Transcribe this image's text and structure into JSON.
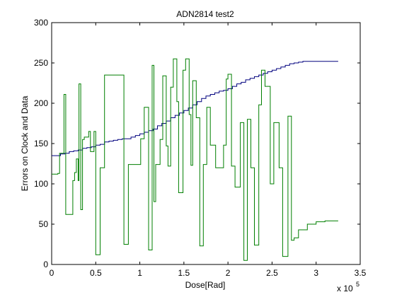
{
  "chart_data": {
    "type": "line",
    "title": "ADN2814 test2",
    "xlabel": "Dose[Rad]",
    "ylabel": "Errors on Clock and Data",
    "x_multiplier_label": "x 10",
    "x_multiplier_exponent": "5",
    "xlim": [
      0,
      3.5
    ],
    "ylim": [
      0,
      300
    ],
    "xticks": [
      0,
      0.5,
      1,
      1.5,
      2,
      2.5,
      3,
      3.5
    ],
    "xtick_labels": [
      "0",
      "0.5",
      "1",
      "1.5",
      "2",
      "2.5",
      "3",
      "3.5"
    ],
    "yticks": [
      0,
      50,
      100,
      150,
      200,
      250,
      300
    ],
    "ytick_labels": [
      "0",
      "50",
      "100",
      "150",
      "200",
      "250",
      "300"
    ],
    "grid": false,
    "series": [
      {
        "color": "#00007f",
        "step": true,
        "points": [
          [
            0,
            135
          ],
          [
            0.1,
            137
          ],
          [
            0.15,
            138
          ],
          [
            0.2,
            140
          ],
          [
            0.25,
            141
          ],
          [
            0.3,
            142
          ],
          [
            0.35,
            144
          ],
          [
            0.4,
            145
          ],
          [
            0.45,
            146
          ],
          [
            0.5,
            148
          ],
          [
            0.55,
            149
          ],
          [
            0.6,
            152
          ],
          [
            0.65,
            153
          ],
          [
            0.7,
            154
          ],
          [
            0.75,
            155
          ],
          [
            0.8,
            156
          ],
          [
            0.9,
            158
          ],
          [
            0.95,
            160
          ],
          [
            1.0,
            162
          ],
          [
            1.05,
            164
          ],
          [
            1.1,
            166
          ],
          [
            1.15,
            168
          ],
          [
            1.2,
            172
          ],
          [
            1.25,
            175
          ],
          [
            1.3,
            178
          ],
          [
            1.35,
            182
          ],
          [
            1.4,
            185
          ],
          [
            1.45,
            188
          ],
          [
            1.5,
            191
          ],
          [
            1.55,
            194
          ],
          [
            1.6,
            198
          ],
          [
            1.65,
            202
          ],
          [
            1.7,
            206
          ],
          [
            1.75,
            209
          ],
          [
            1.8,
            211
          ],
          [
            1.85,
            213
          ],
          [
            1.9,
            215
          ],
          [
            1.95,
            216
          ],
          [
            2.0,
            218
          ],
          [
            2.05,
            221
          ],
          [
            2.1,
            224
          ],
          [
            2.15,
            226
          ],
          [
            2.2,
            229
          ],
          [
            2.25,
            231
          ],
          [
            2.3,
            233
          ],
          [
            2.35,
            235
          ],
          [
            2.4,
            237
          ],
          [
            2.45,
            239
          ],
          [
            2.5,
            241
          ],
          [
            2.55,
            243
          ],
          [
            2.6,
            245
          ],
          [
            2.65,
            247
          ],
          [
            2.7,
            249
          ],
          [
            2.75,
            250
          ],
          [
            2.8,
            251
          ],
          [
            2.85,
            252
          ],
          [
            3.25,
            252
          ]
        ]
      },
      {
        "color": "#007f00",
        "step": true,
        "points": [
          [
            0,
            112
          ],
          [
            0.07,
            113
          ],
          [
            0.09,
            138
          ],
          [
            0.14,
            211
          ],
          [
            0.16,
            62
          ],
          [
            0.24,
            104
          ],
          [
            0.26,
            114
          ],
          [
            0.28,
            131
          ],
          [
            0.3,
            104
          ],
          [
            0.31,
            224
          ],
          [
            0.33,
            68
          ],
          [
            0.35,
            155
          ],
          [
            0.37,
            158
          ],
          [
            0.42,
            165
          ],
          [
            0.44,
            140
          ],
          [
            0.48,
            165
          ],
          [
            0.5,
            12
          ],
          [
            0.55,
            120
          ],
          [
            0.6,
            235
          ],
          [
            0.82,
            25
          ],
          [
            0.87,
            124
          ],
          [
            1.0,
            124
          ],
          [
            1.01,
            156
          ],
          [
            1.05,
            195
          ],
          [
            1.1,
            18
          ],
          [
            1.14,
            247
          ],
          [
            1.16,
            78
          ],
          [
            1.18,
            124
          ],
          [
            1.23,
            155
          ],
          [
            1.26,
            234
          ],
          [
            1.3,
            147
          ],
          [
            1.32,
            122
          ],
          [
            1.35,
            220
          ],
          [
            1.38,
            255
          ],
          [
            1.42,
            202
          ],
          [
            1.44,
            89
          ],
          [
            1.49,
            241
          ],
          [
            1.52,
            255
          ],
          [
            1.56,
            186
          ],
          [
            1.58,
            123
          ],
          [
            1.6,
            228
          ],
          [
            1.64,
            182
          ],
          [
            1.68,
            23
          ],
          [
            1.72,
            124
          ],
          [
            1.76,
            195
          ],
          [
            1.8,
            148
          ],
          [
            1.86,
            120
          ],
          [
            1.95,
            148
          ],
          [
            1.98,
            230
          ],
          [
            2.0,
            236
          ],
          [
            2.04,
            122
          ],
          [
            2.08,
            96
          ],
          [
            2.14,
            176
          ],
          [
            2.18,
            5
          ],
          [
            2.22,
            180
          ],
          [
            2.26,
            120
          ],
          [
            2.3,
            24
          ],
          [
            2.35,
            198
          ],
          [
            2.38,
            241
          ],
          [
            2.42,
            221
          ],
          [
            2.48,
            100
          ],
          [
            2.52,
            176
          ],
          [
            2.58,
            120
          ],
          [
            2.62,
            10
          ],
          [
            2.68,
            184
          ],
          [
            2.72,
            30
          ],
          [
            2.75,
            33
          ],
          [
            2.8,
            43
          ],
          [
            2.9,
            50
          ],
          [
            3.0,
            53
          ],
          [
            3.1,
            54
          ],
          [
            3.25,
            54
          ]
        ]
      }
    ]
  }
}
